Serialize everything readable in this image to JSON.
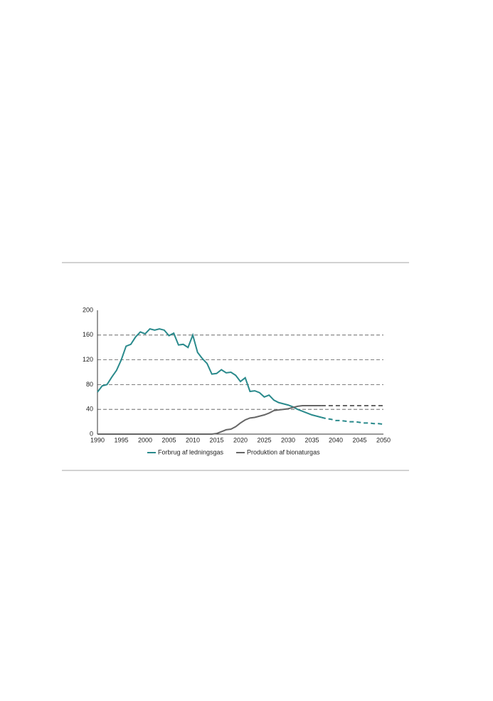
{
  "chart_data": {
    "type": "line",
    "x": [
      1990,
      1991,
      1992,
      1993,
      1994,
      1995,
      1996,
      1997,
      1998,
      1999,
      2000,
      2001,
      2002,
      2003,
      2004,
      2005,
      2006,
      2007,
      2008,
      2009,
      2010,
      2011,
      2012,
      2013,
      2014,
      2015,
      2016,
      2017,
      2018,
      2019,
      2020,
      2021,
      2022,
      2023,
      2024,
      2025,
      2026,
      2027,
      2028,
      2029,
      2030,
      2031,
      2032,
      2033,
      2034,
      2035,
      2036,
      2037,
      2038,
      2039,
      2040,
      2041,
      2042,
      2043,
      2044,
      2045,
      2046,
      2047,
      2048,
      2049,
      2050
    ],
    "series": [
      {
        "name": "Forbrug af ledningsgas",
        "color": "#2a8a8c",
        "values": [
          68,
          78,
          80,
          92,
          103,
          120,
          142,
          145,
          157,
          165,
          162,
          170,
          168,
          170,
          168,
          159,
          163,
          144,
          145,
          140,
          160,
          132,
          122,
          114,
          97,
          98,
          104,
          99,
          100,
          95,
          85,
          91,
          69,
          70,
          67,
          60,
          63,
          55,
          51,
          49,
          47,
          44,
          40,
          37,
          34,
          31,
          29,
          27,
          25,
          24,
          22,
          22,
          21,
          20,
          20,
          19,
          18,
          18,
          17,
          17,
          16
        ]
      },
      {
        "name": "Produktion af bionaturgas",
        "color": "#666666",
        "values": [
          0,
          0,
          0,
          0,
          0,
          0,
          0,
          0,
          0,
          0,
          0,
          0,
          0,
          0,
          0,
          0,
          0,
          0,
          0,
          0,
          0,
          0,
          0,
          0,
          0,
          1,
          4,
          7,
          8,
          12,
          18,
          23,
          26,
          27,
          29,
          31,
          34,
          38,
          39,
          40,
          41,
          43,
          45,
          46,
          46,
          46,
          46,
          46,
          46,
          46,
          46,
          46,
          46,
          46,
          46,
          46,
          46,
          46,
          46,
          46,
          46
        ]
      }
    ],
    "forecast_from": 2037,
    "xlim": [
      1990,
      2050
    ],
    "xticks": [
      1990,
      1995,
      2000,
      2005,
      2010,
      2015,
      2020,
      2025,
      2030,
      2035,
      2040,
      2045,
      2050
    ],
    "ylim": [
      0,
      200
    ],
    "yticks": [
      0,
      40,
      80,
      120,
      160,
      200
    ],
    "grid": true
  }
}
